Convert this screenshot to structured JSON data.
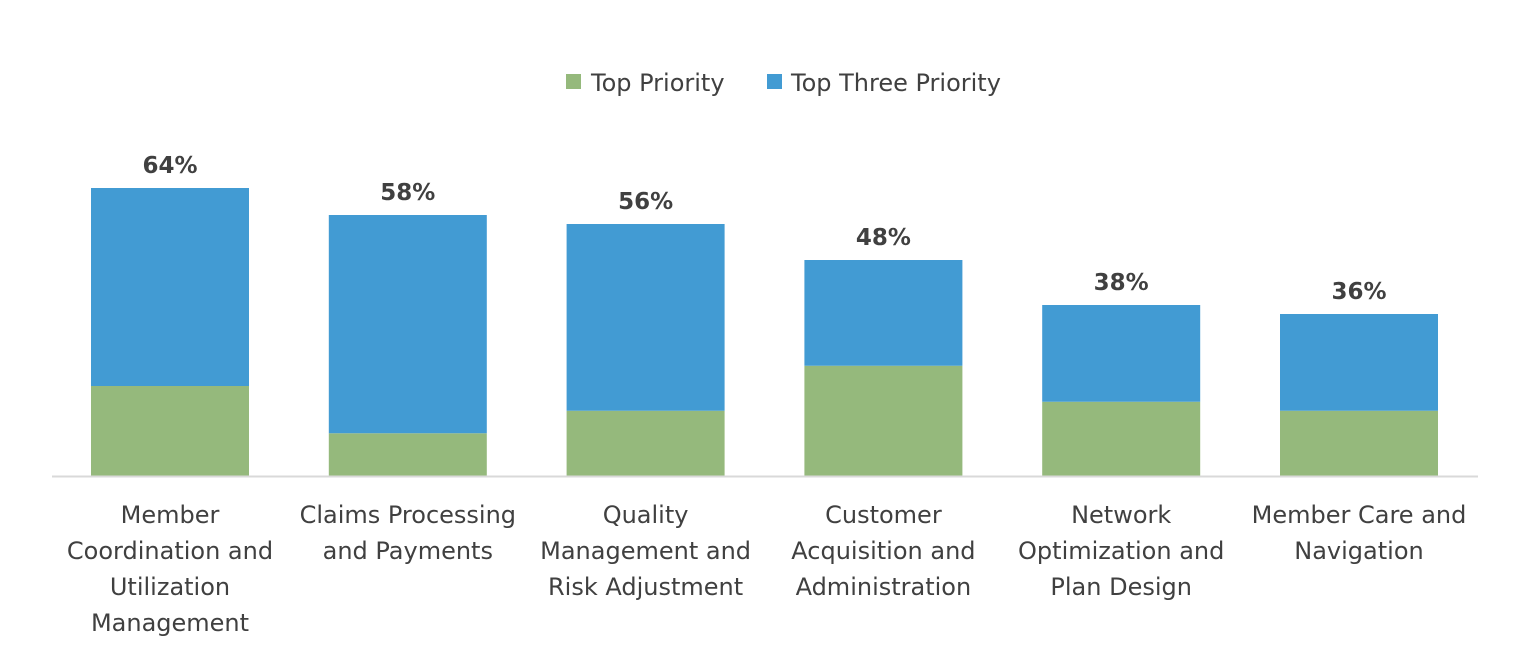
{
  "chart_data": {
    "type": "bar",
    "stacked": true,
    "categories": [
      [
        "Member",
        "Coordination and",
        "Utilization",
        "Management"
      ],
      [
        "Claims Processing",
        "and Payments"
      ],
      [
        "Quality",
        "Management and",
        "Risk Adjustment"
      ],
      [
        "Customer",
        "Acquisition and",
        "Administration"
      ],
      [
        "Network",
        "Optimization and",
        "Plan Design"
      ],
      [
        "Member Care and",
        "Navigation"
      ]
    ],
    "series": [
      {
        "name": "Top Priority",
        "color": "#95B97C",
        "values": [
          20,
          9.5,
          14.5,
          24.5,
          16.5,
          14.5
        ]
      },
      {
        "name": "Top Three Priority",
        "color": "#429BD3",
        "values": [
          44,
          48.5,
          41.5,
          23.5,
          21.5,
          21.5
        ]
      }
    ],
    "totals_labels": [
      "64%",
      "58%",
      "56%",
      "48%",
      "38%",
      "36%"
    ],
    "totals": [
      64,
      58,
      56,
      48,
      38,
      36
    ],
    "ylim": [
      0,
      64
    ],
    "grid": false,
    "legend": "top-center",
    "axis_color": "#D9D9D9"
  }
}
